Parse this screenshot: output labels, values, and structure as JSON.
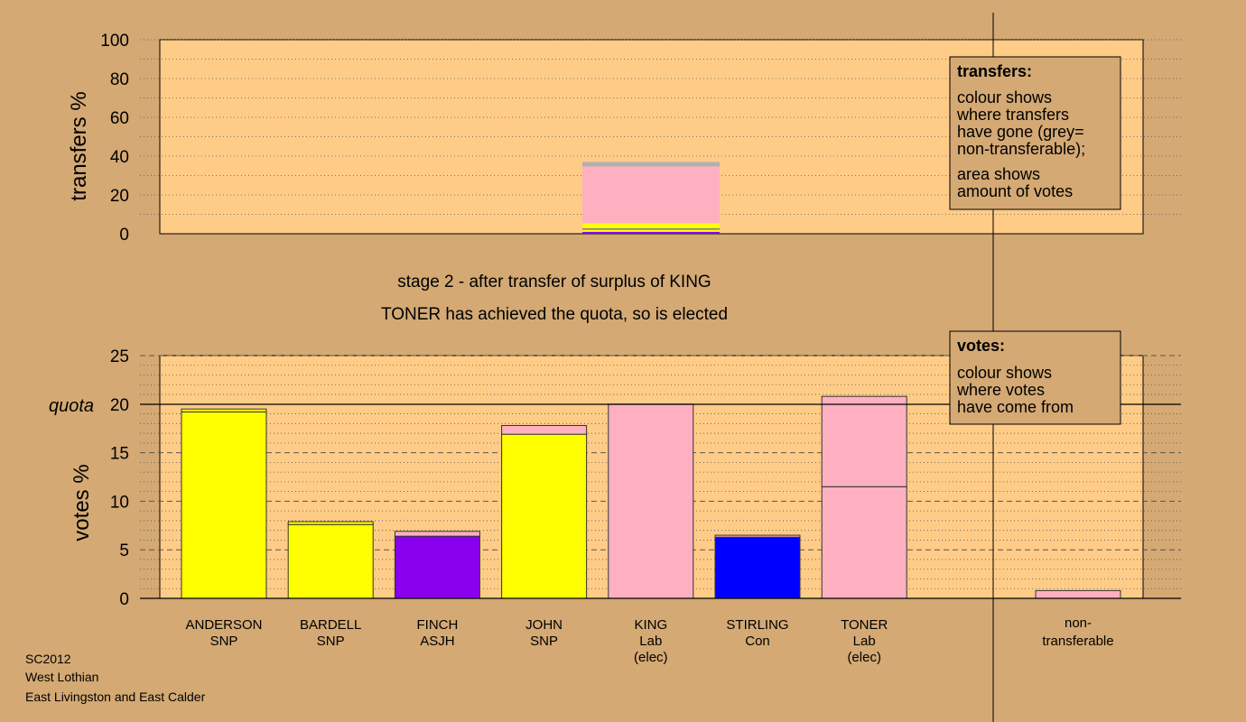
{
  "colors": {
    "background": "#d4a974",
    "panel": "#ffcc88",
    "SNP": "#ffff00",
    "Lab": "#ffb0c0",
    "ASJH": "#8800ee",
    "Con": "#0000ff",
    "nontransferable": "#b0b0b0"
  },
  "stage_title": "stage 2 - after transfer of surplus of KING",
  "elected_note": "TONER has achieved the quota, so is elected",
  "footer": {
    "line1": "SC2012",
    "line2": "West Lothian",
    "line3": "East Livingston and East Calder"
  },
  "legend_transfers": {
    "title": "transfers:",
    "lines": [
      "colour shows",
      "where transfers",
      "have gone (grey=",
      "non-transferable);",
      "area shows",
      "amount of votes"
    ]
  },
  "legend_votes": {
    "title": "votes:",
    "lines": [
      "colour shows",
      "where votes",
      "have come from"
    ]
  },
  "chart_data": [
    {
      "type": "bar",
      "ylabel": "transfers %",
      "ylim": [
        0,
        100
      ],
      "yticks": [
        0,
        20,
        40,
        60,
        80,
        100
      ],
      "transfer_bar": {
        "segments": [
          {
            "party": "ASJH",
            "value": 1.0
          },
          {
            "party": "SNP",
            "value": 1.2
          },
          {
            "party": "Con",
            "value": 0.4
          },
          {
            "party": "SNP",
            "value": 2.8
          },
          {
            "party": "Lab",
            "value": 29.3
          },
          {
            "party": "nontransferable",
            "value": 2.3
          }
        ]
      }
    },
    {
      "type": "bar",
      "ylabel": "votes %",
      "quota_label": "quota",
      "quota": 20,
      "ylim": [
        0,
        25
      ],
      "yticks": [
        0,
        5,
        10,
        15,
        20,
        25
      ],
      "candidates": [
        {
          "name": "ANDERSON",
          "party": "SNP",
          "status": "",
          "first": 19.2,
          "transfer": 0.3,
          "first_party": "SNP",
          "transfer_party": "SNP"
        },
        {
          "name": "BARDELL",
          "party": "SNP",
          "status": "",
          "first": 7.6,
          "transfer": 0.3,
          "first_party": "SNP",
          "transfer_party": "SNP"
        },
        {
          "name": "FINCH",
          "party": "ASJH",
          "status": "",
          "first": 6.4,
          "transfer": 0.5,
          "first_party": "ASJH",
          "transfer_party": "Lab"
        },
        {
          "name": "JOHN",
          "party": "SNP",
          "status": "",
          "first": 16.9,
          "transfer": 0.9,
          "first_party": "SNP",
          "transfer_party": "Lab"
        },
        {
          "name": "KING",
          "party": "Lab",
          "status": "(elec)",
          "first": 20.0,
          "transfer": 0,
          "first_party": "Lab",
          "transfer_party": "Lab"
        },
        {
          "name": "STIRLING",
          "party": "Con",
          "status": "",
          "first": 6.3,
          "transfer": 0.2,
          "first_party": "Con",
          "transfer_party": "Lab"
        },
        {
          "name": "TONER",
          "party": "Lab",
          "status": "(elec)",
          "first": 11.5,
          "transfer": 9.3,
          "first_party": "Lab",
          "transfer_party": "Lab"
        }
      ],
      "nontransferable": {
        "label_line1": "non-",
        "label_line2": "transferable",
        "value": 0.8
      }
    }
  ]
}
